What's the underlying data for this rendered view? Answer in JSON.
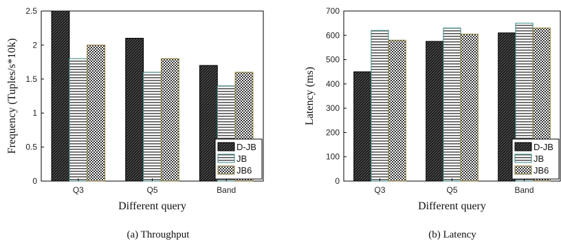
{
  "chart_data": [
    {
      "type": "bar",
      "title": "",
      "caption": "(a) Throughput",
      "xlabel": "Different query",
      "ylabel": "Frequency (Tuples/s*10k)",
      "categories": [
        "Q3",
        "Q5",
        "Band"
      ],
      "ylim": [
        0,
        2.5
      ],
      "yticks": [
        0,
        0.5,
        1,
        1.5,
        2,
        2.5
      ],
      "ytick_labels": [
        "0",
        "0.5",
        "1",
        "1.5",
        "2",
        "2.5"
      ],
      "legend_position": "bottom-right",
      "series": [
        {
          "name": "D-JB",
          "values": [
            2.5,
            2.1,
            1.7
          ]
        },
        {
          "name": "JB",
          "values": [
            1.8,
            1.6,
            1.4
          ]
        },
        {
          "name": "JB6",
          "values": [
            2.0,
            1.8,
            1.6
          ]
        }
      ]
    },
    {
      "type": "bar",
      "title": "",
      "caption": "(b) Latency",
      "xlabel": "Different query",
      "ylabel": "Latency (ms)",
      "categories": [
        "Q3",
        "Q5",
        "Band"
      ],
      "ylim": [
        0,
        700
      ],
      "yticks": [
        0,
        100,
        200,
        300,
        400,
        500,
        600,
        700
      ],
      "ytick_labels": [
        "0",
        "100",
        "200",
        "300",
        "400",
        "500",
        "600",
        "700"
      ],
      "legend_position": "bottom-right",
      "series": [
        {
          "name": "D-JB",
          "values": [
            450,
            575,
            610
          ]
        },
        {
          "name": "JB",
          "values": [
            620,
            630,
            650
          ]
        },
        {
          "name": "JB6",
          "values": [
            580,
            605,
            630
          ]
        }
      ]
    }
  ]
}
